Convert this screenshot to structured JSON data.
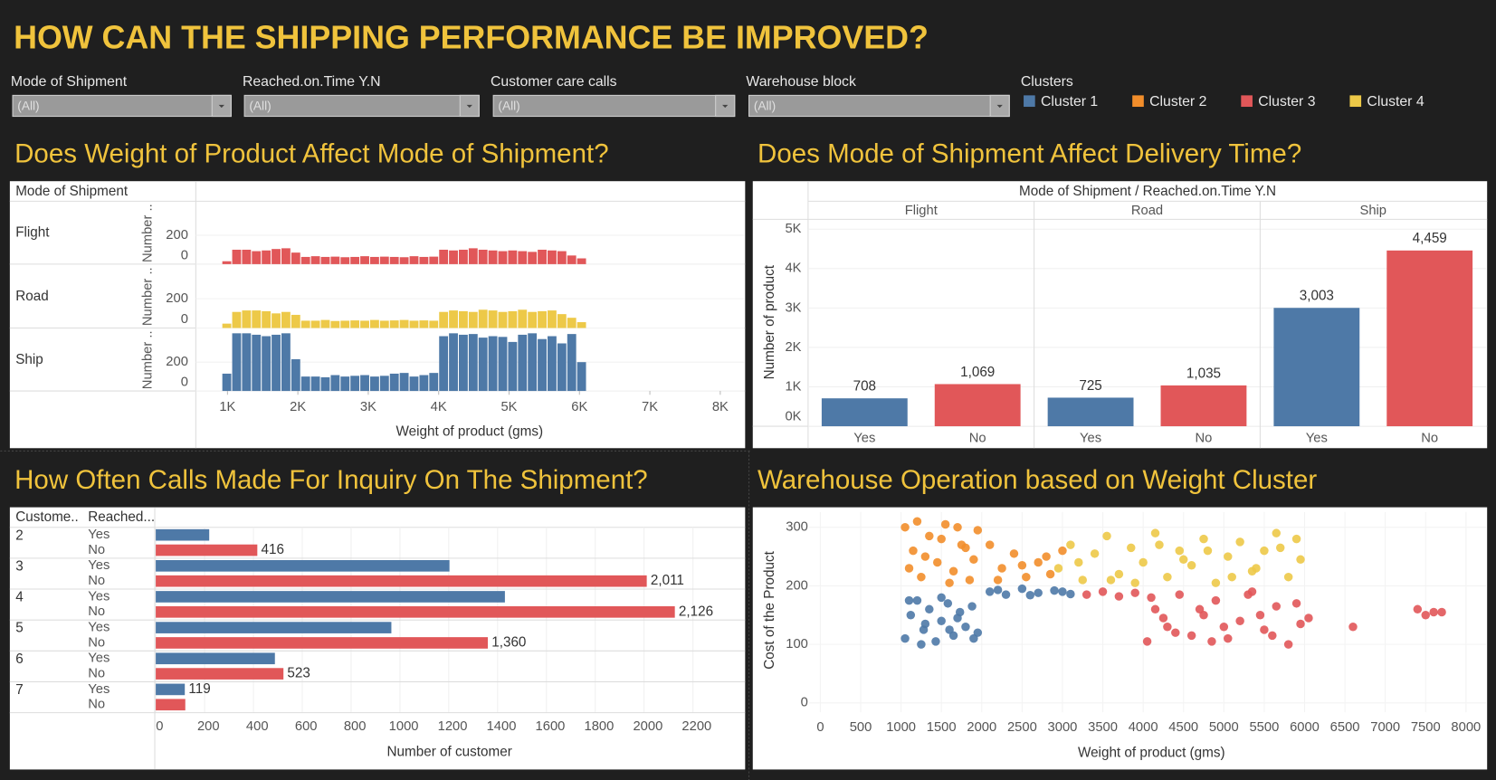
{
  "header": {
    "title": "HOW CAN THE SHIPPING PERFORMANCE BE IMPROVED?"
  },
  "filters": [
    {
      "label": "Mode of Shipment",
      "value": "(All)"
    },
    {
      "label": "Reached.on.Time Y.N",
      "value": "(All)"
    },
    {
      "label": "Customer care calls",
      "value": "(All)"
    },
    {
      "label": "Warehouse block",
      "value": "(All)"
    }
  ],
  "chart_data": [
    {
      "type": "histogram",
      "title": "Does Weight of Product Affect Mode of Shipment?",
      "row_header": "Mode of Shipment",
      "xlabel": "Weight of product (gms)",
      "ylabel": "Number ..",
      "bins": [
        920,
        1060,
        1200,
        1340,
        1480,
        1620,
        1760,
        1900,
        2040,
        2180,
        2320,
        2460,
        2600,
        2740,
        2880,
        3020,
        3160,
        3300,
        3440,
        3580,
        3720,
        3860,
        4000,
        4140,
        4280,
        4420,
        4560,
        4700,
        4840,
        4980,
        5120,
        5260,
        5400,
        5540,
        5680,
        5820,
        5960,
        6100
      ],
      "series": [
        {
          "name": "Flight",
          "color": "#e15759",
          "values": [
            20,
            100,
            100,
            90,
            95,
            105,
            110,
            80,
            50,
            55,
            50,
            52,
            48,
            50,
            55,
            50,
            52,
            50,
            48,
            55,
            50,
            52,
            100,
            95,
            100,
            110,
            100,
            95,
            90,
            95,
            90,
            85,
            100,
            95,
            90,
            60,
            40
          ]
        },
        {
          "name": "Road",
          "color": "#edc948",
          "values": [
            30,
            110,
            120,
            120,
            115,
            100,
            110,
            90,
            50,
            50,
            55,
            48,
            50,
            52,
            50,
            55,
            50,
            52,
            55,
            50,
            52,
            50,
            110,
            120,
            115,
            110,
            125,
            120,
            110,
            115,
            125,
            110,
            115,
            120,
            95,
            70,
            40
          ]
        },
        {
          "name": "Ship",
          "color": "#4e79a7",
          "values": [
            120,
            400,
            400,
            390,
            380,
            390,
            400,
            220,
            100,
            100,
            95,
            110,
            100,
            105,
            110,
            100,
            105,
            120,
            125,
            100,
            110,
            125,
            380,
            400,
            390,
            395,
            370,
            380,
            375,
            340,
            390,
            400,
            360,
            380,
            330,
            395,
            200
          ]
        }
      ],
      "xlim": [
        550,
        8340
      ],
      "xticks": [
        {
          "value": 1000,
          "label": "1K"
        },
        {
          "value": 2000,
          "label": "2K"
        },
        {
          "value": 3000,
          "label": "3K"
        },
        {
          "value": 4000,
          "label": "4K"
        },
        {
          "value": 5000,
          "label": "5K"
        },
        {
          "value": 6000,
          "label": "6K"
        },
        {
          "value": 7000,
          "label": "7K"
        },
        {
          "value": 8000,
          "label": "8K"
        }
      ],
      "ylim": [
        0,
        430
      ],
      "yticks": [
        0,
        200
      ]
    },
    {
      "type": "bar",
      "title": "Does Mode of Shipment Affect Delivery Time?",
      "column_header": "Mode of Shipment / Reached.on.Time Y.N",
      "ylabel": "Number of product",
      "categories": [
        "Yes",
        "No"
      ],
      "colors": [
        "#4e79a7",
        "#e15759"
      ],
      "series": [
        {
          "name": "Flight",
          "values": [
            708,
            1069
          ],
          "value_labels": [
            "708",
            "1,069"
          ]
        },
        {
          "name": "Road",
          "values": [
            725,
            1035
          ],
          "value_labels": [
            "725",
            "1,035"
          ]
        },
        {
          "name": "Ship",
          "values": [
            3003,
            4459
          ],
          "value_labels": [
            "3,003",
            "4,459"
          ]
        }
      ],
      "ylim": [
        0,
        5250
      ],
      "yticks": [
        {
          "value": 0,
          "label": "0K"
        },
        {
          "value": 1000,
          "label": "1K"
        },
        {
          "value": 2000,
          "label": "2K"
        },
        {
          "value": 3000,
          "label": "3K"
        },
        {
          "value": 4000,
          "label": "4K"
        },
        {
          "value": 5000,
          "label": "5K"
        }
      ],
      "grid": true
    },
    {
      "type": "barh",
      "title": "How Often Calls Made For Inquiry On The Shipment?",
      "row_headers": [
        "Custome..",
        "Reached..."
      ],
      "xlabel": "Number of customer",
      "categories": [
        "2",
        "3",
        "4",
        "5",
        "6",
        "7"
      ],
      "series": [
        {
          "name": "Yes",
          "color": "#4e79a7",
          "values": [
            219,
            1203,
            1430,
            965,
            488,
            119
          ],
          "value_labels": [
            null,
            null,
            null,
            null,
            null,
            "119"
          ]
        },
        {
          "name": "No",
          "color": "#e15759",
          "values": [
            416,
            2011,
            2126,
            1360,
            523,
            121
          ],
          "value_labels": [
            "416",
            "2,011",
            "2,126",
            "1,360",
            "523",
            null
          ]
        }
      ],
      "xlim": [
        0,
        2410
      ],
      "xticks": [
        0,
        200,
        400,
        600,
        800,
        1000,
        1200,
        1400,
        1600,
        1800,
        2000,
        2200
      ],
      "grid": true
    },
    {
      "type": "scatter",
      "title": "Warehouse Operation based on Weight Cluster",
      "legend_title": "Clusters",
      "xlabel": "Weight of product (gms)",
      "ylabel": "Cost of the Product",
      "series": [
        {
          "name": "Cluster 1",
          "color": "#4e79a7",
          "x": [
            1050,
            1120,
            1200,
            1280,
            1350,
            1430,
            1500,
            1580,
            1650,
            1730,
            1800,
            1880,
            1950,
            1100,
            1300,
            1500,
            1700,
            1900,
            1250,
            1600,
            2100,
            2300,
            2500,
            2700,
            2900,
            3100,
            2200,
            2600,
            3000
          ],
          "y": [
            110,
            150,
            175,
            125,
            160,
            105,
            140,
            170,
            115,
            155,
            130,
            165,
            120,
            175,
            135,
            180,
            145,
            110,
            100,
            125,
            190,
            185,
            195,
            188,
            192,
            186,
            193,
            184,
            190
          ]
        },
        {
          "name": "Cluster 2",
          "color": "#f28e2b",
          "x": [
            1050,
            1150,
            1250,
            1350,
            1450,
            1550,
            1650,
            1750,
            1850,
            1950,
            1100,
            1300,
            1500,
            1700,
            1900,
            1200,
            1600,
            1800,
            2100,
            2250,
            2400,
            2550,
            2700,
            2850,
            3000,
            2200,
            2500,
            2800
          ],
          "y": [
            300,
            260,
            215,
            285,
            240,
            305,
            225,
            270,
            210,
            295,
            230,
            250,
            280,
            300,
            245,
            310,
            205,
            265,
            270,
            230,
            255,
            215,
            240,
            220,
            260,
            210,
            235,
            250
          ]
        },
        {
          "name": "Cluster 3",
          "color": "#e15759",
          "x": [
            3300,
            3500,
            3700,
            3900,
            4050,
            4150,
            4300,
            4450,
            4600,
            4750,
            4900,
            5050,
            5200,
            5350,
            5500,
            5650,
            5800,
            5950,
            4100,
            4400,
            4700,
            5000,
            5300,
            5600,
            5900,
            4250,
            4850,
            5450,
            6050,
            6600,
            7400,
            7500,
            7600,
            7700
          ],
          "y": [
            185,
            190,
            182,
            188,
            105,
            160,
            130,
            185,
            115,
            150,
            175,
            110,
            140,
            190,
            125,
            165,
            100,
            135,
            180,
            120,
            160,
            130,
            185,
            115,
            170,
            145,
            105,
            150,
            145,
            130,
            160,
            150,
            155,
            155
          ]
        },
        {
          "name": "Cluster 4",
          "color": "#edc948",
          "x": [
            2950,
            3100,
            3250,
            3400,
            3550,
            3700,
            3850,
            4000,
            4150,
            4300,
            4450,
            4600,
            4750,
            4900,
            5050,
            5200,
            5350,
            5500,
            5650,
            5800,
            5950,
            3200,
            3600,
            4200,
            4800,
            5400,
            5900,
            3900,
            4500,
            5100,
            5700
          ],
          "y": [
            230,
            270,
            210,
            255,
            285,
            220,
            265,
            240,
            290,
            215,
            260,
            235,
            280,
            205,
            250,
            275,
            225,
            260,
            290,
            215,
            245,
            240,
            210,
            270,
            260,
            230,
            280,
            205,
            245,
            215,
            265
          ]
        }
      ],
      "xlim": [
        -140,
        8250
      ],
      "xticks": [
        0,
        500,
        1000,
        1500,
        2000,
        2500,
        3000,
        3500,
        4000,
        4500,
        5000,
        5500,
        6000,
        6500,
        7000,
        7500,
        8000
      ],
      "ylim": [
        -16,
        326
      ],
      "yticks": [
        0,
        100,
        200,
        300
      ],
      "grid": true
    }
  ]
}
